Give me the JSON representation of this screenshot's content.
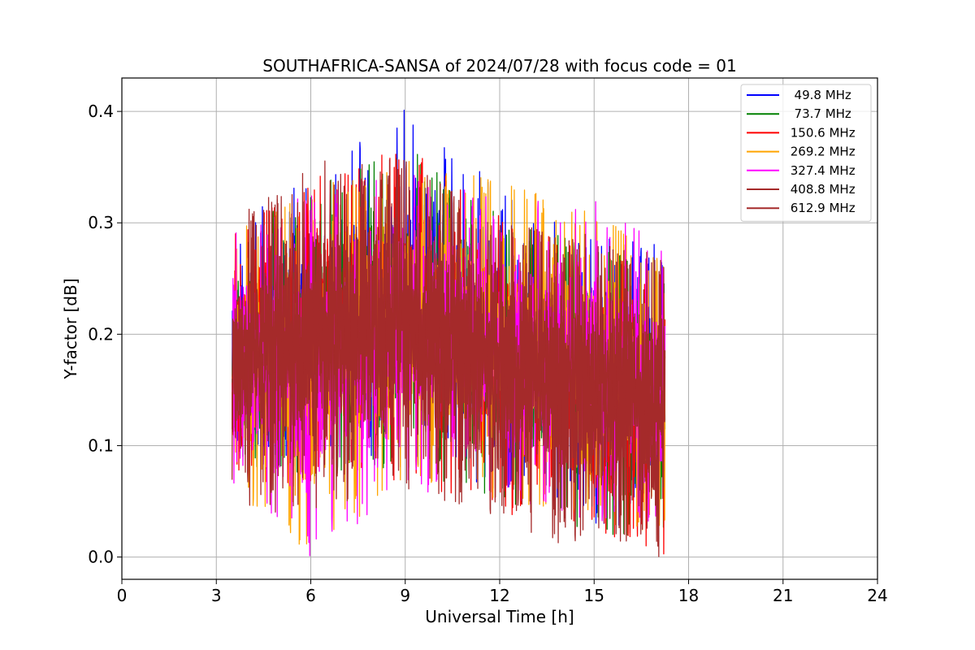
{
  "chart_data": {
    "type": "line",
    "title": "SOUTHAFRICA-SANSA of 2024/07/28 with focus code = 01",
    "xlabel": "Universal Time [h]",
    "ylabel": "Y-factor [dB]",
    "xlim": [
      0,
      24
    ],
    "ylim": [
      -0.02,
      0.43
    ],
    "xticks": [
      0,
      3,
      6,
      9,
      12,
      15,
      18,
      21,
      24
    ],
    "xtick_labels": [
      "0",
      "3",
      "6",
      "9",
      "12",
      "15",
      "18",
      "21",
      "24"
    ],
    "yticks": [
      0.0,
      0.1,
      0.2,
      0.3,
      0.4
    ],
    "ytick_labels": [
      "0.0",
      "0.1",
      "0.2",
      "0.3",
      "0.4"
    ],
    "grid": true,
    "legend_position": "top-right",
    "time_range": [
      3.5,
      17.25
    ],
    "series": [
      {
        "name": "  49.8 MHz",
        "color": "#0000ff",
        "envelope": {
          "x": [
            3.5,
            6,
            9,
            12,
            15,
            17.25
          ],
          "low": [
            0.09,
            0.08,
            0.09,
            0.06,
            0.03,
            0.01
          ],
          "high": [
            0.3,
            0.35,
            0.41,
            0.33,
            0.29,
            0.28
          ]
        }
      },
      {
        "name": "  73.7 MHz",
        "color": "#008000",
        "envelope": {
          "x": [
            3.5,
            6,
            9,
            12,
            15,
            17.25
          ],
          "low": [
            0.08,
            0.07,
            0.08,
            0.05,
            0.02,
            0.01
          ],
          "high": [
            0.29,
            0.33,
            0.37,
            0.31,
            0.28,
            0.26
          ]
        }
      },
      {
        "name": " 150.6 MHz",
        "color": "#ff0000",
        "envelope": {
          "x": [
            3.5,
            6,
            9,
            12,
            15,
            17.25
          ],
          "low": [
            0.07,
            0.06,
            0.07,
            0.04,
            0.02,
            0.0
          ],
          "high": [
            0.29,
            0.34,
            0.37,
            0.31,
            0.27,
            0.26
          ]
        }
      },
      {
        "name": " 269.2 MHz",
        "color": "#ffa500",
        "envelope": {
          "x": [
            3.5,
            6,
            9,
            12,
            15,
            17.25
          ],
          "low": [
            0.06,
            0.0,
            0.07,
            0.05,
            0.03,
            0.02
          ],
          "high": [
            0.29,
            0.33,
            0.36,
            0.34,
            0.31,
            0.27
          ]
        }
      },
      {
        "name": " 327.4 MHz",
        "color": "#ff00ff",
        "envelope": {
          "x": [
            3.5,
            6,
            9,
            12,
            15,
            17.25
          ],
          "low": [
            0.05,
            0.0,
            0.06,
            0.05,
            0.03,
            0.03
          ],
          "high": [
            0.29,
            0.33,
            0.35,
            0.32,
            0.32,
            0.28
          ]
        }
      },
      {
        "name": " 408.8 MHz",
        "color": "#a52a2a",
        "envelope": {
          "x": [
            3.5,
            6,
            9,
            12,
            15,
            17.25
          ],
          "low": [
            0.04,
            0.04,
            0.06,
            0.03,
            0.0,
            0.0
          ],
          "high": [
            0.3,
            0.36,
            0.36,
            0.3,
            0.29,
            0.27
          ]
        }
      },
      {
        "name": " 612.9 MHz",
        "color": "#a52a2a",
        "envelope": {
          "x": [
            3.5,
            6,
            9,
            12,
            15,
            17.25
          ],
          "low": [
            0.06,
            0.06,
            0.08,
            0.05,
            0.02,
            0.02
          ],
          "high": [
            0.3,
            0.34,
            0.35,
            0.3,
            0.28,
            0.27
          ]
        }
      }
    ]
  }
}
